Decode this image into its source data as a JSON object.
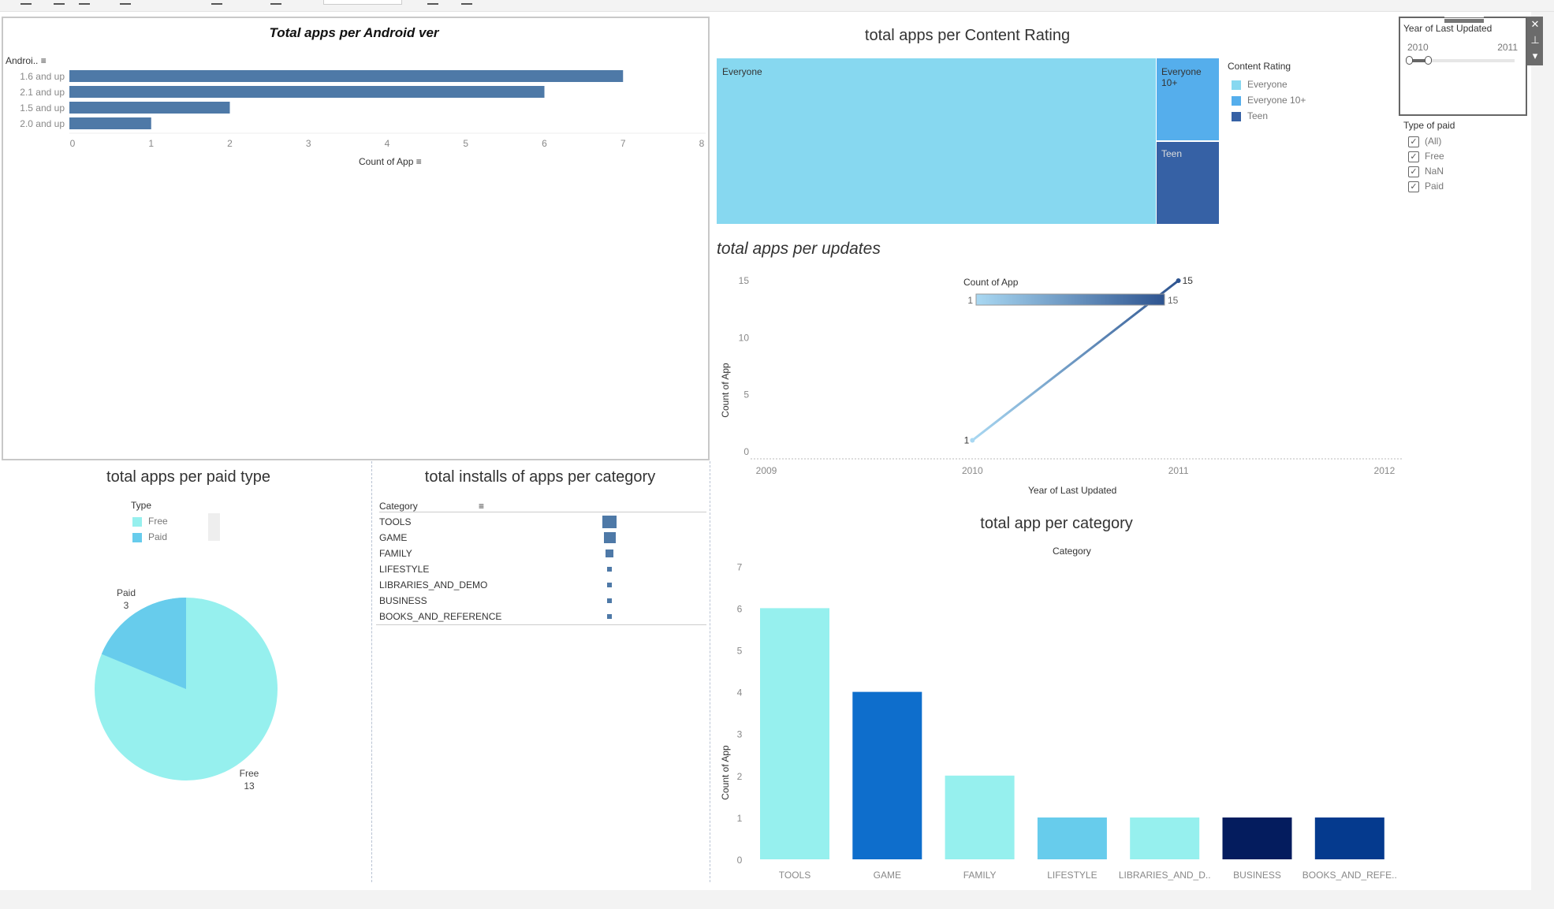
{
  "toolbar": {
    "icons": [
      "new-sheet-icon",
      "duplicate-icon",
      "clear-sheet-icon",
      "swap-icon",
      "sort-asc-icon",
      "sort-desc-icon",
      "highlight-icon",
      "group-icon",
      "label-icon",
      "fit-dropdown",
      "show-cards-icon",
      "presentation-icon"
    ]
  },
  "android": {
    "title": "Total apps per Android ver",
    "axis_header": "Androi..",
    "xlabel": "Count of App",
    "chart_data": {
      "type": "bar",
      "orientation": "horizontal",
      "categories": [
        "1.6 and up",
        "2.1 and up",
        "1.5 and up",
        "2.0 and up"
      ],
      "values": [
        7,
        6,
        2,
        1
      ],
      "xlabel": "Count of App",
      "ylabel": "Androi..",
      "xlim": [
        0,
        8
      ],
      "ticks": [
        "0",
        "1",
        "2",
        "3",
        "4",
        "5",
        "6",
        "7",
        "8"
      ],
      "color": "#4e79a7"
    }
  },
  "paid": {
    "title": "total apps per paid type",
    "legend_title": "Type",
    "legend": [
      {
        "label": "Free",
        "color": "#96f0ee"
      },
      {
        "label": "Paid",
        "color": "#67ccec"
      }
    ],
    "chart_data": {
      "type": "pie",
      "categories": [
        "Free",
        "Paid"
      ],
      "values": [
        13,
        3
      ],
      "labels": [
        {
          "name": "Paid",
          "value": "3"
        },
        {
          "name": "Free",
          "value": "13"
        }
      ]
    }
  },
  "installs": {
    "title": "total installs of apps per category",
    "column_header": "Category",
    "rows": [
      {
        "label": "TOOLS",
        "size": 1.0
      },
      {
        "label": "GAME",
        "size": 0.85
      },
      {
        "label": "FAMILY",
        "size": 0.55
      },
      {
        "label": "LIFESTYLE",
        "size": 0.3
      },
      {
        "label": "LIBRARIES_AND_DEMO",
        "size": 0.3
      },
      {
        "label": "BUSINESS",
        "size": 0.3
      },
      {
        "label": "BOOKS_AND_REFERENCE",
        "size": 0.3
      }
    ],
    "color": "#4e79a7"
  },
  "content": {
    "title": "total apps per Content Rating",
    "legend_title": "Content Rating",
    "items": [
      {
        "label": "Everyone",
        "color": "#87d8f0"
      },
      {
        "label": "Everyone 10+",
        "color": "#55aeec"
      },
      {
        "label": "Teen",
        "color": "#3661a5"
      }
    ],
    "treemap_labels": [
      "Everyone",
      "Everyone 10+",
      "Teen"
    ]
  },
  "filters": {
    "year_title": "Year of Last Updated",
    "year_min": "2010",
    "year_max": "2011",
    "paid_title": "Type of paid",
    "paid_options": [
      {
        "label": "(All)",
        "checked": true
      },
      {
        "label": "Free",
        "checked": true
      },
      {
        "label": "NaN",
        "checked": true
      },
      {
        "label": "Paid",
        "checked": true
      }
    ]
  },
  "updates": {
    "title": "total apps per updates",
    "legend_title": "Count of App",
    "legend_min": "1",
    "legend_max": "15",
    "chart_data": {
      "type": "line",
      "x": [
        2010,
        2011
      ],
      "y": [
        1,
        15
      ],
      "point_labels": [
        "1",
        "15"
      ],
      "xlabel": "Year of Last Updated",
      "ylabel": "Count of App",
      "xlim": [
        2009,
        2012
      ],
      "ylim": [
        0,
        15
      ],
      "xticks": [
        "2009",
        "2010",
        "2011",
        "2012"
      ],
      "yticks": [
        "0",
        "5",
        "10",
        "15"
      ],
      "color_range": [
        "#a9d8f2",
        "#2e5490"
      ]
    }
  },
  "category": {
    "title": "total app per category",
    "header": "Category",
    "chart_data": {
      "type": "bar",
      "categories": [
        "TOOLS",
        "GAME",
        "FAMILY",
        "LIFESTYLE",
        "LIBRARIES_AND_D..",
        "BUSINESS",
        "BOOKS_AND_REFE.."
      ],
      "values": [
        6,
        4,
        2,
        1,
        1,
        1,
        1
      ],
      "colors": [
        "#96f0ee",
        "#0e6ecc",
        "#96f0ee",
        "#67ccec",
        "#96f0ee",
        "#041c5e",
        "#053a8e"
      ],
      "ylabel": "Count of App",
      "xlabel": "Category",
      "ylim": [
        0,
        7
      ],
      "yticks": [
        "0",
        "1",
        "2",
        "3",
        "4",
        "5",
        "6",
        "7"
      ]
    }
  }
}
